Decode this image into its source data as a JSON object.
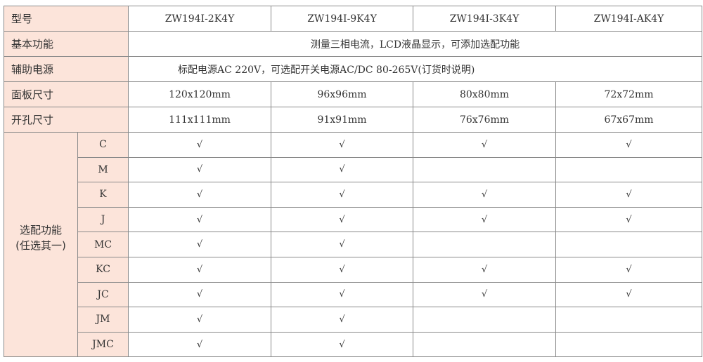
{
  "header": {
    "label": "型号",
    "models": [
      "ZW194I-2K4Y",
      "ZW194I-9K4Y",
      "ZW194I-3K4Y",
      "ZW194I-AK4Y"
    ]
  },
  "basic": {
    "label": "基本功能",
    "value": "测量三相电流，LCD液晶显示，可添加选配功能"
  },
  "power": {
    "label": "辅助电源",
    "value": "标配电源AC 220V，可选配开关电源AC/DC 80-265V(订货时说明)"
  },
  "panel": {
    "label": "面板尺寸",
    "values": [
      "120x120mm",
      "96x96mm",
      "80x80mm",
      "72x72mm"
    ]
  },
  "cutout": {
    "label": "开孔尺寸",
    "values": [
      "111x111mm",
      "91x91mm",
      "76x76mm",
      "67x67mm"
    ]
  },
  "options": {
    "label_line1": "选配功能",
    "label_line2": "(任选其一)",
    "check_symbol": "√",
    "rows": [
      {
        "code": "C",
        "marks": [
          "√",
          "√",
          "√",
          "√"
        ]
      },
      {
        "code": "M",
        "marks": [
          "√",
          "√",
          "",
          ""
        ]
      },
      {
        "code": "K",
        "marks": [
          "√",
          "√",
          "√",
          "√"
        ]
      },
      {
        "code": "J",
        "marks": [
          "√",
          "√",
          "√",
          "√"
        ]
      },
      {
        "code": "MC",
        "marks": [
          "√",
          "√",
          "",
          ""
        ]
      },
      {
        "code": "KC",
        "marks": [
          "√",
          "√",
          "√",
          "√"
        ]
      },
      {
        "code": "JC",
        "marks": [
          "√",
          "√",
          "√",
          "√"
        ]
      },
      {
        "code": "JM",
        "marks": [
          "√",
          "√",
          "",
          ""
        ]
      },
      {
        "code": "JMC",
        "marks": [
          "√",
          "√",
          "",
          ""
        ]
      }
    ]
  },
  "colors": {
    "label_bg": "#fce4da",
    "border": "#8a8a8a"
  }
}
